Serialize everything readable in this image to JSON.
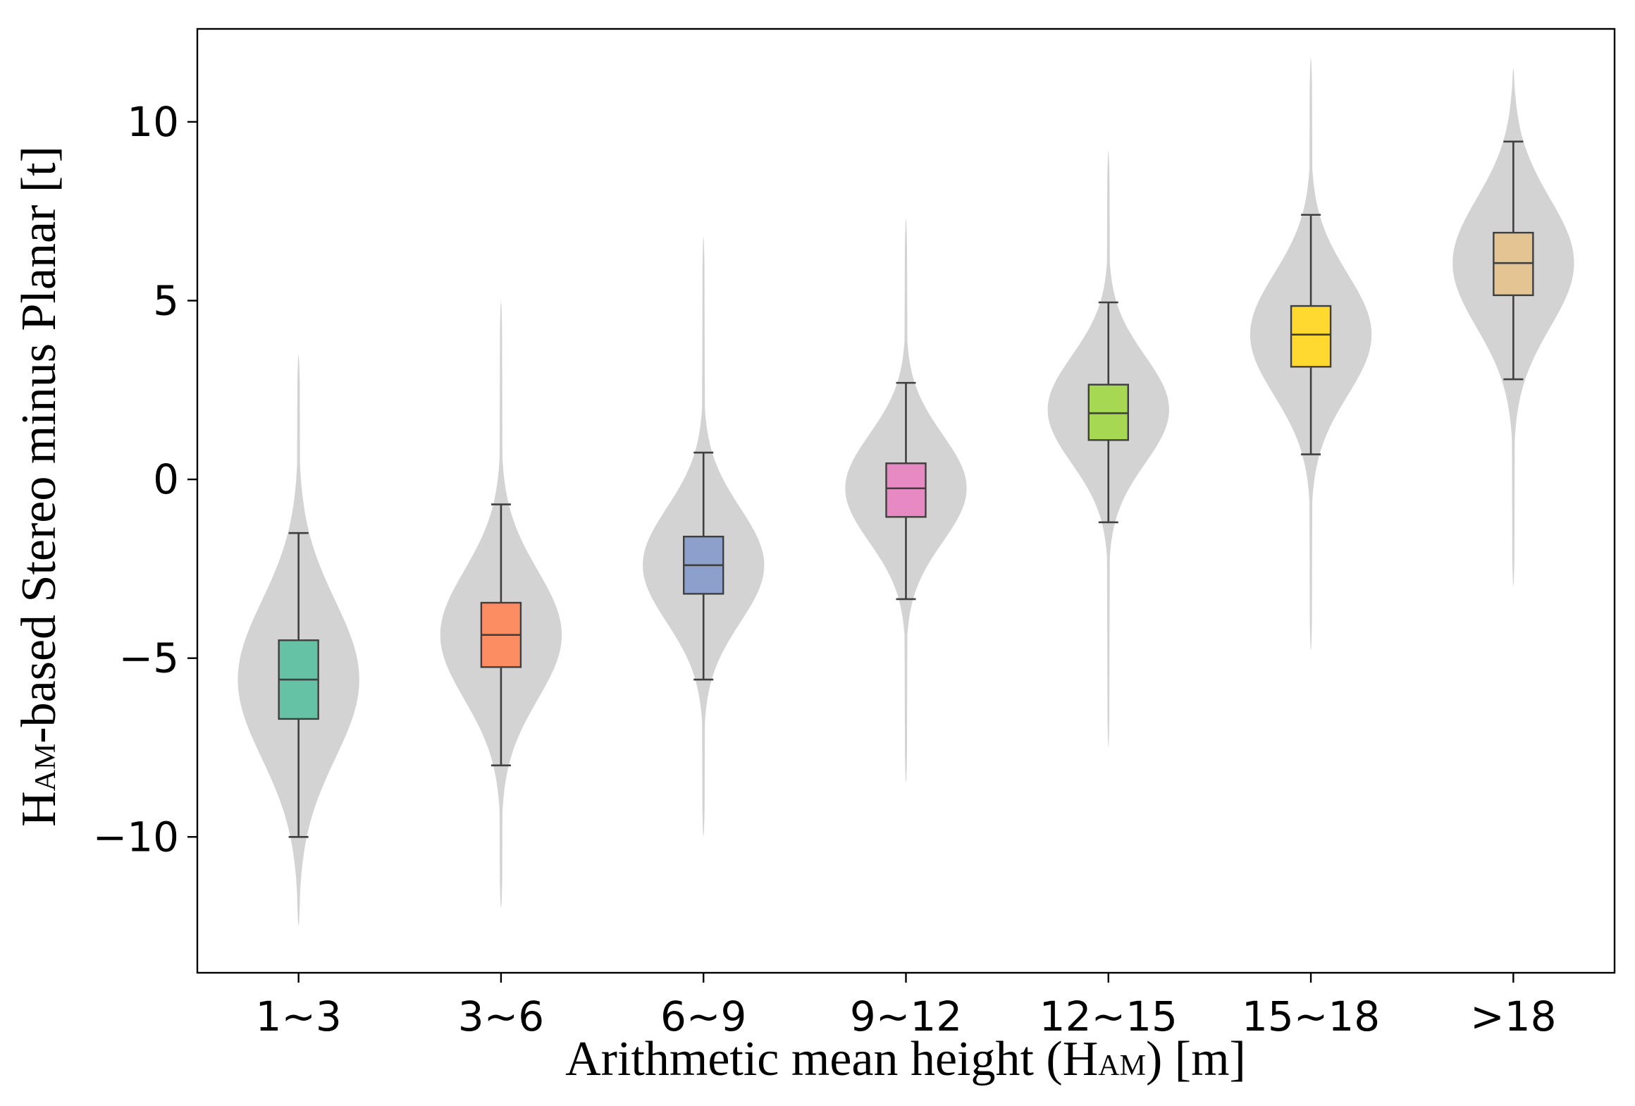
{
  "chart_data": {
    "type": "violin",
    "title": "",
    "xlabel": {
      "main": "Arithmetic mean height (H",
      "sub": "AM",
      "tail": ") [m]"
    },
    "ylabel": {
      "main": "H",
      "sub": "AM",
      "tail": "-based Stereo minus Planar [t]"
    },
    "ylim": [
      -13.8,
      12.6
    ],
    "yticks": [
      -10,
      -5,
      0,
      5,
      10
    ],
    "ytick_labels": [
      "−10",
      "−5",
      "0",
      "5",
      "10"
    ],
    "grid": false,
    "categories": [
      "1~3",
      "3~6",
      "6~9",
      "9~12",
      "12~15",
      "15~18",
      ">18"
    ],
    "series": [
      {
        "name": "1~3",
        "color": "#66c2a5",
        "median": -5.6,
        "q1": -6.7,
        "q3": -4.5,
        "whisker_low": -10.0,
        "whisker_high": -1.5,
        "min": -12.5,
        "max": 3.5,
        "mode": -5.6,
        "spread": 2.2
      },
      {
        "name": "3~6",
        "color": "#fc8d62",
        "median": -4.35,
        "q1": -5.25,
        "q3": -3.45,
        "whisker_low": -8.0,
        "whisker_high": -0.7,
        "min": -12.0,
        "max": 5.0,
        "mode": -4.35,
        "spread": 1.8
      },
      {
        "name": "6~9",
        "color": "#8da0cb",
        "median": -2.4,
        "q1": -3.2,
        "q3": -1.6,
        "whisker_low": -5.6,
        "whisker_high": 0.75,
        "min": -10.0,
        "max": 6.8,
        "mode": -2.4,
        "spread": 1.6
      },
      {
        "name": "9~12",
        "color": "#e78ac3",
        "median": -0.25,
        "q1": -1.05,
        "q3": 0.45,
        "whisker_low": -3.35,
        "whisker_high": 2.7,
        "min": -8.5,
        "max": 7.3,
        "mode": -0.25,
        "spread": 1.5
      },
      {
        "name": "12~15",
        "color": "#a6d854",
        "median": 1.85,
        "q1": 1.1,
        "q3": 2.65,
        "whisker_low": -1.2,
        "whisker_high": 4.95,
        "min": -7.5,
        "max": 9.2,
        "mode": 1.95,
        "spread": 1.5
      },
      {
        "name": "15~18",
        "color": "#ffd92f",
        "median": 4.05,
        "q1": 3.15,
        "q3": 4.85,
        "whisker_low": 0.7,
        "whisker_high": 7.4,
        "min": -4.8,
        "max": 11.8,
        "mode": 4.05,
        "spread": 1.7
      },
      {
        "name": ">18",
        "color": "#e5c494",
        "median": 6.05,
        "q1": 5.15,
        "q3": 6.9,
        "whisker_low": 2.8,
        "whisker_high": 9.45,
        "min": -3.0,
        "max": 11.5,
        "mode": 6.05,
        "spread": 1.8
      }
    ]
  }
}
